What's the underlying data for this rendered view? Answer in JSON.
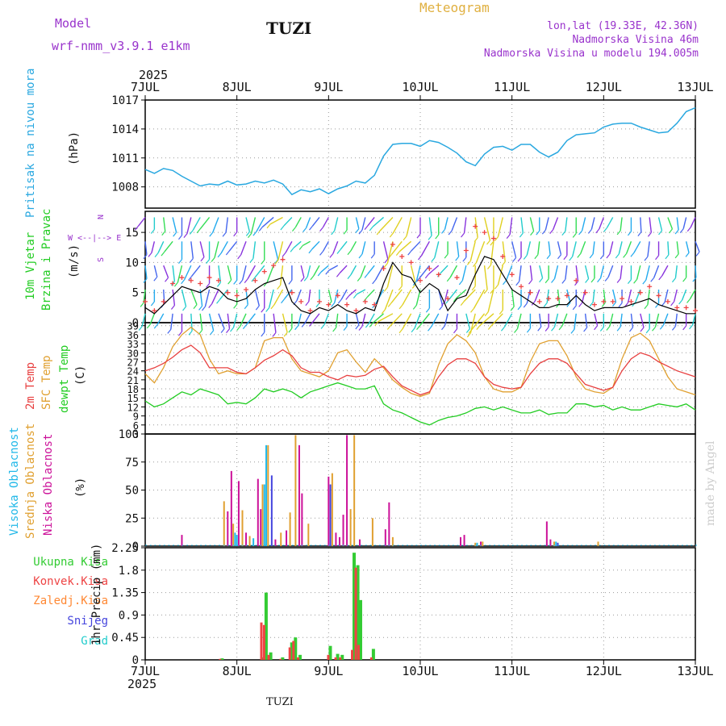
{
  "header": {
    "model_label": "Model",
    "model_name": "wrf-nmm_v3.9.1 e1km",
    "station": "TUZI",
    "meteogram": "Meteogram",
    "coords": "lon,lat (19.33E, 42.36N)",
    "elevation": "Nadmorska Visina 46m",
    "model_elevation": "Nadmorska Visina u modelu 194.005m",
    "footer_station": "TUZI",
    "credit": "made by Angel"
  },
  "colors": {
    "pressure": "#2aa8e0",
    "wind_speed": "#000000",
    "gust": "#ee4444",
    "temp2m": "#e84040",
    "sfc_temp": "#e0a030",
    "dewpt": "#22cc22",
    "high_cloud": "#22b8e8",
    "mid_cloud": "#e0a030",
    "low_cloud": "#cc1199",
    "total_precip": "#33cc33",
    "conv_precip": "#ee4444",
    "frozen_precip": "#ff8833",
    "snow": "#4444dd",
    "hail": "#22cccc",
    "title_purple": "#9933cc",
    "meteogram_gold": "#e0b040"
  },
  "chart_data": [
    {
      "type": "line",
      "name": "pressure",
      "ylabel": [
        "Pritisak na nivou mora",
        "(hPa)"
      ],
      "ylim": [
        1005.8,
        1017
      ],
      "yticks": [
        1008,
        1011,
        1014,
        1017
      ],
      "x_days": [
        7,
        13
      ],
      "x": [
        0,
        0.1,
        0.2,
        0.3,
        0.4,
        0.5,
        0.6,
        0.7,
        0.8,
        0.9,
        1.0,
        1.1,
        1.2,
        1.3,
        1.4,
        1.5,
        1.6,
        1.7,
        1.8,
        1.9,
        2.0,
        2.1,
        2.2,
        2.3,
        2.4,
        2.5,
        2.6,
        2.7,
        2.8,
        2.9,
        3.0,
        3.1,
        3.2,
        3.3,
        3.4,
        3.5,
        3.6,
        3.7,
        3.8,
        3.9,
        4.0,
        4.1,
        4.2,
        4.3,
        4.4,
        4.5,
        4.6,
        4.7,
        4.8,
        4.9,
        5.0,
        5.1,
        5.2,
        5.3,
        5.4,
        5.5,
        5.6,
        5.7,
        5.8,
        5.9,
        6.0
      ],
      "y": [
        1009.8,
        1009.4,
        1009.9,
        1009.7,
        1009.1,
        1008.6,
        1008.1,
        1008.3,
        1008.2,
        1008.6,
        1008.2,
        1008.3,
        1008.6,
        1008.4,
        1008.7,
        1008.3,
        1007.2,
        1007.7,
        1007.5,
        1007.8,
        1007.3,
        1007.8,
        1008.1,
        1008.6,
        1008.4,
        1009.2,
        1011.2,
        1012.4,
        1012.5,
        1012.5,
        1012.2,
        1012.8,
        1012.6,
        1012.1,
        1011.5,
        1010.6,
        1010.2,
        1011.4,
        1012.1,
        1012.2,
        1011.8,
        1012.4,
        1012.4,
        1011.6,
        1011.1,
        1011.6,
        1012.8,
        1013.4,
        1013.5,
        1013.6,
        1014.2,
        1014.5,
        1014.6,
        1014.6,
        1014.2,
        1013.9,
        1013.6,
        1013.7,
        1014.6,
        1015.8,
        1016.2
      ]
    },
    {
      "type": "line",
      "name": "wind",
      "ylabel": [
        "10m Vjetar",
        "Brzina i Pravac",
        "(m/s)"
      ],
      "direction_label": "W <--|--> E",
      "direction_axis": [
        "S",
        "N"
      ],
      "ylim": [
        0,
        18.5
      ],
      "yticks": [
        0,
        5,
        10,
        15
      ],
      "x": [
        0,
        0.1,
        0.2,
        0.3,
        0.4,
        0.5,
        0.6,
        0.7,
        0.8,
        0.9,
        1.0,
        1.1,
        1.2,
        1.3,
        1.4,
        1.5,
        1.6,
        1.7,
        1.8,
        1.9,
        2.0,
        2.1,
        2.2,
        2.3,
        2.4,
        2.5,
        2.6,
        2.7,
        2.8,
        2.9,
        3.0,
        3.1,
        3.2,
        3.3,
        3.4,
        3.5,
        3.6,
        3.7,
        3.8,
        3.9,
        4.0,
        4.1,
        4.2,
        4.3,
        4.4,
        4.5,
        4.6,
        4.7,
        4.8,
        4.9,
        5.0,
        5.1,
        5.2,
        5.3,
        5.4,
        5.5,
        5.6,
        5.7,
        5.8,
        5.9,
        6.0
      ],
      "speed": [
        2.5,
        1.5,
        3.0,
        4.5,
        6.0,
        5.5,
        5.0,
        6.0,
        5.5,
        4.0,
        3.5,
        4.0,
        5.5,
        6.5,
        7.0,
        7.5,
        3.5,
        2.0,
        1.5,
        2.5,
        2.0,
        3.0,
        2.0,
        1.5,
        2.5,
        2.0,
        6.5,
        10.0,
        8.0,
        7.5,
        5.0,
        6.5,
        5.5,
        2.0,
        4.0,
        4.5,
        8.0,
        11.0,
        10.5,
        8.0,
        5.5,
        4.5,
        3.5,
        2.5,
        2.5,
        3.0,
        3.0,
        4.5,
        3.0,
        2.0,
        2.5,
        2.5,
        2.5,
        3.0,
        3.5,
        4.0,
        3.0,
        2.5,
        2.0,
        1.5,
        1.5
      ],
      "gust": [
        3.5,
        2.0,
        3.5,
        6.5,
        7.5,
        7.0,
        6.5,
        7.5,
        7.0,
        5.0,
        4.5,
        5.5,
        7.0,
        8.5,
        9.5,
        10.5,
        5.0,
        3.5,
        2.0,
        3.5,
        3.0,
        4.5,
        3.0,
        2.0,
        3.5,
        3.0,
        9.0,
        13.0,
        11.0,
        10.0,
        7.0,
        9.0,
        8.0,
        4.0,
        7.5,
        12.0,
        16.0,
        15.0,
        14.0,
        11.0,
        8.0,
        6.0,
        5.0,
        3.5,
        4.0,
        4.0,
        4.5,
        7.0,
        5.0,
        3.0,
        3.5,
        3.5,
        4.0,
        3.5,
        5.0,
        6.0,
        4.5,
        3.5,
        2.5,
        2.5,
        2.0
      ],
      "barb_levels": [
        1.5,
        5.5,
        9.5,
        13.5,
        17.5
      ],
      "barb_dir_deg": [
        200,
        210,
        220,
        190,
        180,
        175,
        170,
        160,
        150,
        170,
        200,
        215,
        230,
        180,
        170,
        160,
        180,
        200,
        220,
        230,
        210,
        190,
        180,
        160,
        200,
        220,
        240,
        250,
        235,
        220,
        210,
        230,
        220,
        200,
        180,
        160,
        200,
        230,
        240,
        235,
        220,
        200,
        180,
        170,
        180,
        200,
        210,
        190,
        170,
        160,
        180,
        200,
        190,
        170,
        160,
        180,
        200,
        210,
        190,
        180,
        200
      ]
    },
    {
      "type": "line",
      "name": "temperature",
      "ylabel": [
        "2m Temp",
        "SFC Temp",
        "dewpt Temp",
        "(C)"
      ],
      "ylim": [
        3,
        40
      ],
      "yticks": [
        3,
        6,
        9,
        12,
        15,
        18,
        21,
        24,
        27,
        30,
        33,
        36,
        39
      ],
      "x": [
        0,
        0.1,
        0.2,
        0.3,
        0.4,
        0.5,
        0.6,
        0.7,
        0.8,
        0.9,
        1.0,
        1.1,
        1.2,
        1.3,
        1.4,
        1.5,
        1.6,
        1.7,
        1.8,
        1.9,
        2.0,
        2.1,
        2.2,
        2.3,
        2.4,
        2.5,
        2.6,
        2.7,
        2.8,
        2.9,
        3.0,
        3.1,
        3.2,
        3.3,
        3.4,
        3.5,
        3.6,
        3.7,
        3.8,
        3.9,
        4.0,
        4.1,
        4.2,
        4.3,
        4.4,
        4.5,
        4.6,
        4.7,
        4.8,
        4.9,
        5.0,
        5.1,
        5.2,
        5.3,
        5.4,
        5.5,
        5.6,
        5.7,
        5.8,
        5.9,
        6.0
      ],
      "temp2m": [
        24,
        25,
        26.5,
        28.5,
        31,
        32.5,
        30,
        25,
        25,
        25,
        23.5,
        23,
        25,
        27.5,
        29,
        31,
        29,
        25,
        23.5,
        23.5,
        22,
        21,
        22.5,
        22,
        22.5,
        24.5,
        25.5,
        22,
        19,
        17.5,
        16,
        17,
        22,
        26,
        28,
        28,
        26.5,
        22,
        19.5,
        18.5,
        18,
        18.5,
        23,
        26.5,
        28,
        28,
        26.5,
        23,
        19.5,
        18.5,
        17.5,
        18.5,
        24,
        28,
        30,
        29,
        27,
        25.5,
        24,
        23,
        22
      ],
      "sfc_temp": [
        23,
        20,
        25,
        32,
        36,
        38.5,
        36,
        28,
        23,
        24,
        23,
        23,
        25,
        34,
        35,
        35,
        28,
        24,
        23,
        22,
        24,
        30,
        31,
        27,
        23.5,
        28,
        25,
        21,
        18.5,
        16.5,
        15.5,
        16.5,
        26,
        33,
        36,
        34,
        30,
        22,
        18,
        17,
        17,
        18.5,
        27,
        33,
        34,
        34,
        29,
        22,
        18,
        17,
        16.5,
        18.5,
        28,
        35,
        36.5,
        34,
        28,
        22,
        18,
        17,
        16
      ],
      "dewpt": [
        14,
        12,
        13,
        15,
        17,
        16,
        18,
        17,
        16,
        13,
        13.5,
        13,
        15,
        18,
        17,
        18,
        17,
        15,
        17,
        18,
        19,
        20,
        19,
        18,
        18,
        19,
        13,
        11,
        10,
        8.5,
        7,
        6,
        7.5,
        8.5,
        9,
        10,
        11.5,
        12,
        11,
        12,
        11,
        10,
        10,
        11,
        9.5,
        10,
        10,
        13,
        13,
        12,
        12.5,
        11,
        12,
        11,
        11,
        12,
        13,
        12.5,
        12,
        13,
        11
      ]
    },
    {
      "type": "bar",
      "name": "cloud",
      "ylabel": [
        "Visoka Oblacnost",
        "Srednja Oblacnost",
        "Niska Oblacnost",
        "(%)"
      ],
      "ylim": [
        0,
        100
      ],
      "yticks": [
        0,
        25,
        50,
        75,
        100
      ],
      "bars": [
        [
          0.4,
          "low",
          10
        ],
        [
          0.86,
          "mid",
          40
        ],
        [
          0.9,
          "low",
          31
        ],
        [
          0.94,
          "low",
          67
        ],
        [
          0.96,
          "mid",
          20
        ],
        [
          0.98,
          "high",
          12
        ],
        [
          1.0,
          "high",
          10
        ],
        [
          1.02,
          "low",
          58
        ],
        [
          1.06,
          "mid",
          32
        ],
        [
          1.1,
          "low",
          12
        ],
        [
          1.14,
          "mid",
          9
        ],
        [
          1.18,
          "high",
          7
        ],
        [
          1.23,
          "low",
          60
        ],
        [
          1.26,
          "low",
          33
        ],
        [
          1.28,
          "mid",
          55
        ],
        [
          1.3,
          "high",
          55
        ],
        [
          1.32,
          "high",
          90
        ],
        [
          1.34,
          "mid",
          90
        ],
        [
          1.38,
          "snow",
          63
        ],
        [
          1.42,
          "low",
          6
        ],
        [
          1.48,
          "mid",
          12
        ],
        [
          1.54,
          "low",
          14
        ],
        [
          1.58,
          "mid",
          30
        ],
        [
          1.64,
          "mid",
          99
        ],
        [
          1.68,
          "low",
          90
        ],
        [
          1.71,
          "low",
          47
        ],
        [
          1.78,
          "mid",
          20
        ],
        [
          2.0,
          "low",
          62
        ],
        [
          2.02,
          "snow",
          55
        ],
        [
          2.04,
          "mid",
          65
        ],
        [
          2.08,
          "low",
          12
        ],
        [
          2.12,
          "low",
          8
        ],
        [
          2.16,
          "low",
          28
        ],
        [
          2.2,
          "low",
          99
        ],
        [
          2.24,
          "mid",
          33
        ],
        [
          2.28,
          "mid",
          99
        ],
        [
          2.34,
          "low",
          6
        ],
        [
          2.48,
          "mid",
          25
        ],
        [
          2.62,
          "low",
          15
        ],
        [
          2.66,
          "low",
          39
        ],
        [
          2.7,
          "mid",
          8
        ],
        [
          3.44,
          "low",
          8
        ],
        [
          3.48,
          "low",
          10
        ],
        [
          3.6,
          "mid",
          3
        ],
        [
          3.62,
          "high",
          3
        ],
        [
          3.66,
          "low",
          4
        ],
        [
          3.68,
          "mid",
          4
        ],
        [
          4.38,
          "low",
          22
        ],
        [
          4.42,
          "low",
          6
        ],
        [
          4.46,
          "mid",
          4
        ],
        [
          4.48,
          "high",
          4
        ],
        [
          4.5,
          "snow",
          3
        ],
        [
          4.94,
          "mid",
          4
        ]
      ]
    },
    {
      "type": "bar",
      "name": "precip",
      "ylabel": [
        "1hr Precip (mm)"
      ],
      "legend": [
        "Ukupna Kisa",
        "Konvek.Kisa",
        "Zaledj.Kisa",
        "Snijeg",
        "Grad"
      ],
      "ylim": [
        0,
        2.25
      ],
      "yticks": [
        0,
        0.45,
        0.9,
        1.35,
        1.8,
        2.25
      ],
      "x": [
        0.83,
        1.28,
        1.31,
        1.36,
        1.49,
        1.59,
        1.63,
        1.68,
        2.01,
        2.09,
        2.14,
        2.27,
        2.31,
        2.34,
        2.48
      ],
      "total": [
        0.03,
        0.05,
        1.35,
        0.15,
        0.05,
        0.35,
        0.45,
        0.1,
        0.28,
        0.12,
        0.1,
        2.15,
        1.9,
        1.2,
        0.22
      ],
      "convective": [
        0.02,
        0.75,
        0.7,
        0.1,
        0.02,
        0.25,
        0.38,
        0.05,
        0.1,
        0.05,
        0.05,
        0.2,
        1.85,
        0.3,
        0.05
      ]
    }
  ],
  "axes": {
    "top_year": "2025",
    "bottom_year": "2025",
    "day_labels": [
      "7JUL",
      "8JUL",
      "9JUL",
      "10JUL",
      "11JUL",
      "12JUL",
      "13JUL"
    ]
  }
}
